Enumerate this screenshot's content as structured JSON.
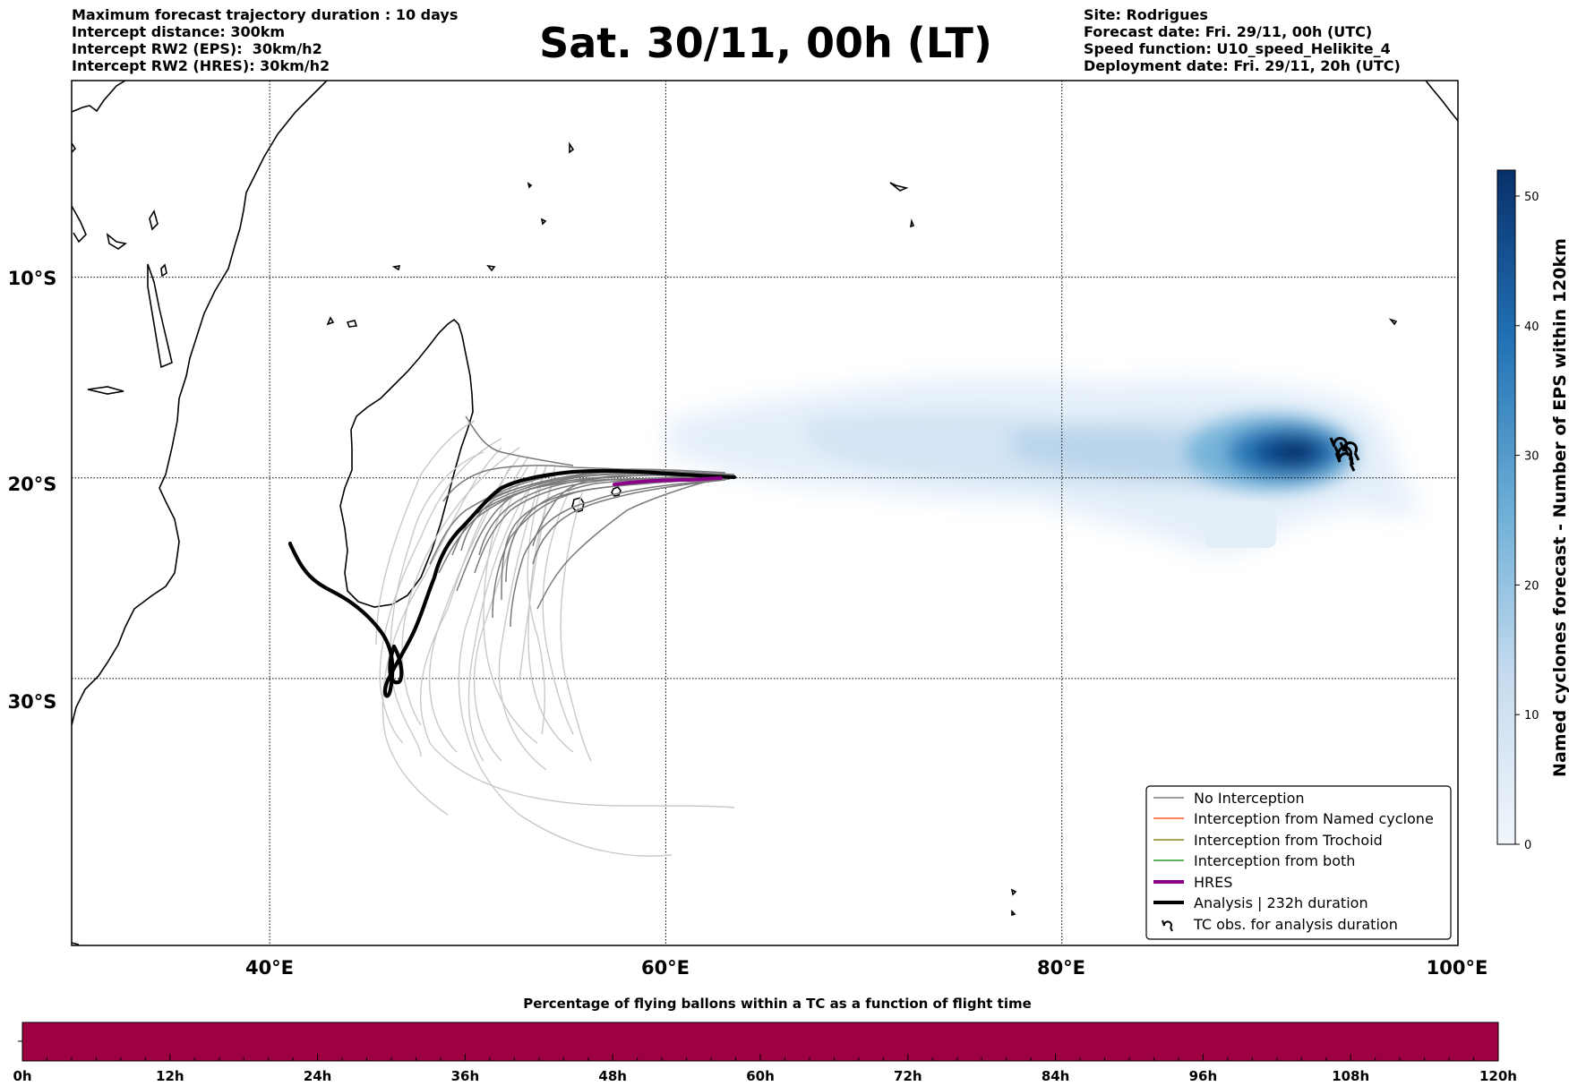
{
  "header": {
    "left_lines": [
      "Maximum forecast trajectory duration : 10 days",
      "Intercept distance: 300km",
      "Intercept RW2 (EPS):  30km/h2",
      "Intercept RW2 (HRES): 30km/h2"
    ],
    "title": "Sat. 30/11, 00h (LT)",
    "right_lines": [
      "Site: Rodrigues",
      "Forecast date: Fri. 29/11, 00h (UTC)",
      "Speed function: U10_speed_Helikite_4",
      "Deployment date: Fri. 29/11, 20h (UTC)"
    ]
  },
  "map": {
    "lat_labels": [
      "10°S",
      "20°S",
      "30°S"
    ],
    "lon_labels": [
      "40°E",
      "60°E",
      "80°E",
      "100°E"
    ],
    "lon_range": [
      30,
      100
    ],
    "lat_range": [
      -43.3,
      -0.2
    ],
    "grid_lats": [
      -10,
      -20,
      -30
    ],
    "grid_lons": [
      40,
      60,
      80
    ],
    "colors": {
      "no_interception": "#7a7a7a",
      "no_interception_late": "#c8c8c8",
      "named_cyclone": "#ff5a1f",
      "trochoid": "#8a8a1a",
      "both": "#22a022",
      "hres": "#8b008b",
      "analysis": "#000000",
      "coast": "#000000"
    }
  },
  "legend": {
    "items": [
      {
        "label": "No Interception",
        "icon": "line-gray"
      },
      {
        "label": "Interception from Named cyclone",
        "icon": "line-orange"
      },
      {
        "label": "Interception from Trochoid",
        "icon": "line-olive"
      },
      {
        "label": "Interception from both",
        "icon": "line-green"
      },
      {
        "label": "HRES",
        "icon": "line-purple-thick"
      },
      {
        "label": "Analysis | 232h duration",
        "icon": "line-black-thick"
      },
      {
        "label": "TC obs. for analysis duration",
        "icon": "cyclone-symbol-icon"
      }
    ]
  },
  "colorbar": {
    "label": "Named cyclones forecast - Number of EPS within 120km",
    "ticks": [
      "0",
      "10",
      "20",
      "30",
      "40",
      "50"
    ],
    "min": 0,
    "max": 52,
    "color_low": "#eef4fb",
    "color_high": "#08306b"
  },
  "bottom_bar": {
    "title": "Percentage of flying ballons within a TC as a function of flight time",
    "ticks": [
      "0h",
      "12h",
      "24h",
      "36h",
      "48h",
      "60h",
      "72h",
      "84h",
      "96h",
      "108h",
      "120h"
    ],
    "color": "#9e0142"
  }
}
